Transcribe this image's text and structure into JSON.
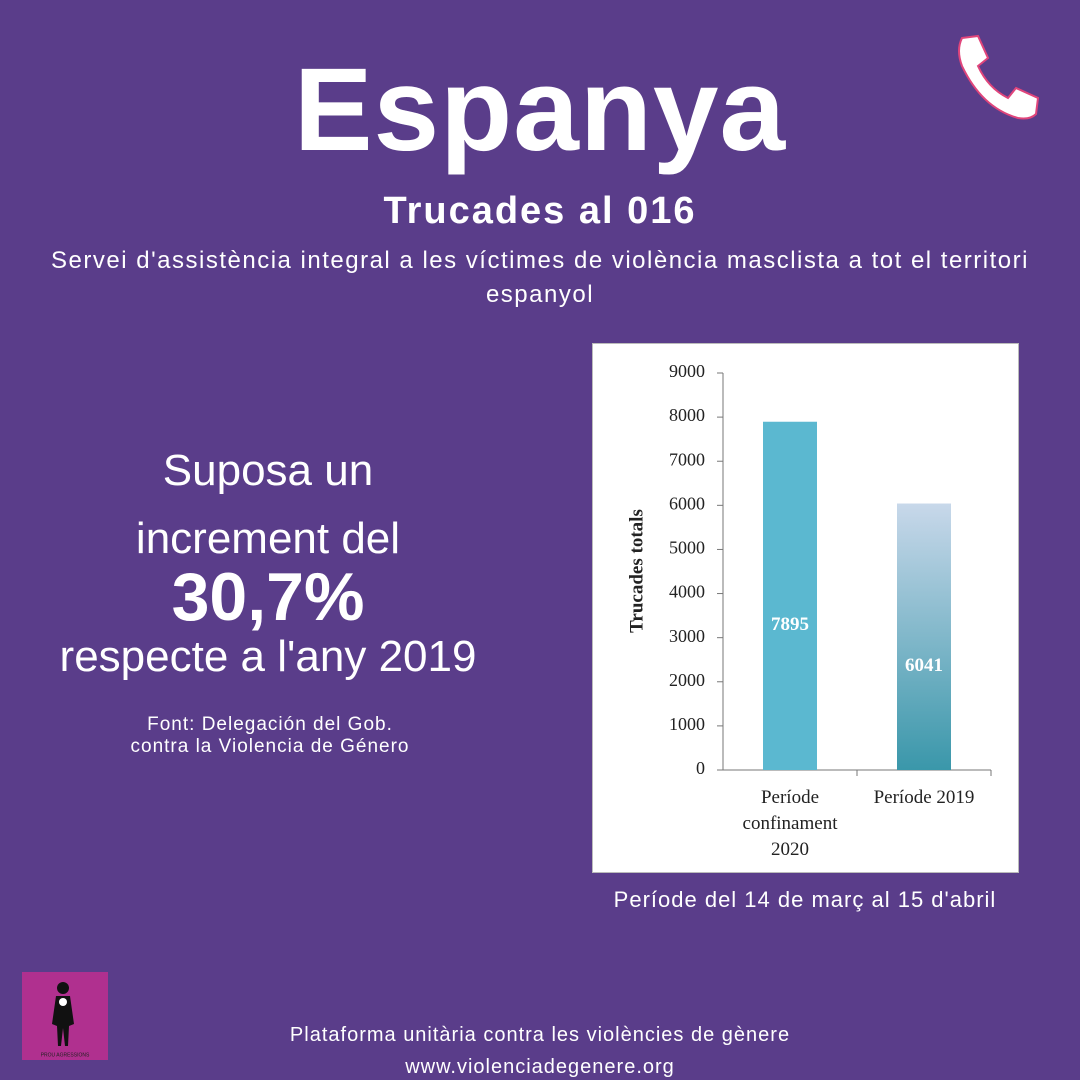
{
  "header": {
    "title": "Espanya",
    "subtitle": "Trucades al 016",
    "description": "Servei d'assistència integral a les víctimes de violència masclista a tot el territori espanyol"
  },
  "highlight": {
    "lines": [
      "Suposa un",
      "increment del",
      "30,7%",
      "respecte a l'any 2019"
    ],
    "source": [
      "Font:  Delegación del Gob.",
      "contra la Violencia de Género"
    ]
  },
  "chart_data": {
    "type": "bar",
    "ylabel": "Trucades totals",
    "categories": [
      "Període confinament 2020",
      "Període 2019"
    ],
    "values": [
      7895,
      6041
    ],
    "colors": [
      "#5bb8d0",
      "#3a97aa"
    ],
    "ylim": [
      0,
      9000
    ],
    "yticks": [
      0,
      1000,
      2000,
      3000,
      4000,
      5000,
      6000,
      7000,
      8000,
      9000
    ],
    "caption": "Període del 14 de març al 15 d'abril"
  },
  "footer": {
    "organization": "Plataforma unitària contra les violències de gènere",
    "website": "www.violenciadegenere.org",
    "logo_text": "PROU AGRESSIONS"
  }
}
